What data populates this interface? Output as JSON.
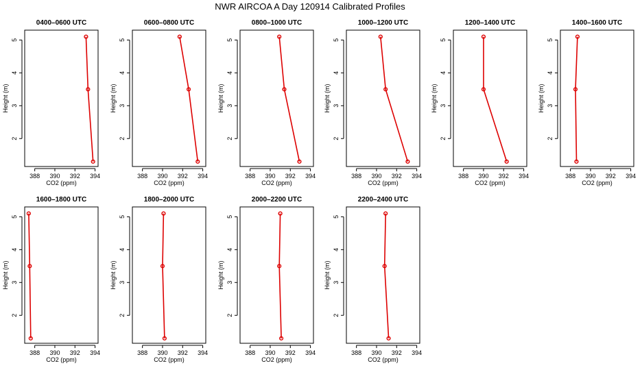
{
  "figure": {
    "title": "NWR AIRCOA A  Day 120914  Calibrated Profiles",
    "line_color": "#dd0000"
  },
  "chart_data": [
    {
      "type": "line",
      "title": "0400–0600 UTC",
      "xlabel": "CO2 (ppm)",
      "ylabel": "Height (m)",
      "xlim": [
        387,
        394.3
      ],
      "ylim": [
        1.15,
        5.3
      ],
      "xticks": [
        388,
        390,
        392,
        394
      ],
      "yticks": [
        2,
        3,
        4,
        5
      ],
      "series": [
        {
          "x": [
            393.8,
            393.3,
            393.1
          ],
          "y": [
            1.3,
            3.5,
            5.1
          ]
        }
      ]
    },
    {
      "type": "line",
      "title": "0600–0800 UTC",
      "xlabel": "CO2 (ppm)",
      "ylabel": "Height (m)",
      "xlim": [
        387,
        394.3
      ],
      "ylim": [
        1.15,
        5.3
      ],
      "xticks": [
        388,
        390,
        392,
        394
      ],
      "yticks": [
        2,
        3,
        4,
        5
      ],
      "series": [
        {
          "x": [
            393.5,
            392.6,
            391.7
          ],
          "y": [
            1.3,
            3.5,
            5.1
          ]
        }
      ]
    },
    {
      "type": "line",
      "title": "0800–1000 UTC",
      "xlabel": "CO2 (ppm)",
      "ylabel": "Height (m)",
      "xlim": [
        387,
        394.3
      ],
      "ylim": [
        1.15,
        5.3
      ],
      "xticks": [
        388,
        390,
        392,
        394
      ],
      "yticks": [
        2,
        3,
        4,
        5
      ],
      "series": [
        {
          "x": [
            392.9,
            391.4,
            390.9
          ],
          "y": [
            1.3,
            3.5,
            5.1
          ]
        }
      ]
    },
    {
      "type": "line",
      "title": "1000–1200 UTC",
      "xlabel": "CO2 (ppm)",
      "ylabel": "Height (m)",
      "xlim": [
        387,
        394.3
      ],
      "ylim": [
        1.15,
        5.3
      ],
      "xticks": [
        388,
        390,
        392,
        394
      ],
      "yticks": [
        2,
        3,
        4,
        5
      ],
      "series": [
        {
          "x": [
            393.1,
            390.9,
            390.4
          ],
          "y": [
            1.3,
            3.5,
            5.1
          ]
        }
      ]
    },
    {
      "type": "line",
      "title": "1200–1400 UTC",
      "xlabel": "CO2 (ppm)",
      "ylabel": "Height (m)",
      "xlim": [
        387,
        394.3
      ],
      "ylim": [
        1.15,
        5.3
      ],
      "xticks": [
        388,
        390,
        392,
        394
      ],
      "yticks": [
        2,
        3,
        4,
        5
      ],
      "series": [
        {
          "x": [
            392.3,
            390.0,
            390.0
          ],
          "y": [
            1.3,
            3.5,
            5.1
          ]
        }
      ]
    },
    {
      "type": "line",
      "title": "1400–1600 UTC",
      "xlabel": "CO2 (ppm)",
      "ylabel": "Height (m)",
      "xlim": [
        387,
        394.3
      ],
      "ylim": [
        1.15,
        5.3
      ],
      "xticks": [
        388,
        390,
        392,
        394
      ],
      "yticks": [
        2,
        3,
        4,
        5
      ],
      "series": [
        {
          "x": [
            388.6,
            388.5,
            388.7
          ],
          "y": [
            1.3,
            3.5,
            5.1
          ]
        }
      ]
    },
    {
      "type": "line",
      "title": "1600–1800 UTC",
      "xlabel": "CO2 (ppm)",
      "ylabel": "Height (m)",
      "xlim": [
        387,
        394.3
      ],
      "ylim": [
        1.15,
        5.3
      ],
      "xticks": [
        388,
        390,
        392,
        394
      ],
      "yticks": [
        2,
        3,
        4,
        5
      ],
      "series": [
        {
          "x": [
            387.6,
            387.5,
            387.4
          ],
          "y": [
            1.3,
            3.5,
            5.1
          ]
        }
      ]
    },
    {
      "type": "line",
      "title": "1800–2000 UTC",
      "xlabel": "CO2 (ppm)",
      "ylabel": "Height (m)",
      "xlim": [
        387,
        394.3
      ],
      "ylim": [
        1.15,
        5.3
      ],
      "xticks": [
        388,
        390,
        392,
        394
      ],
      "yticks": [
        2,
        3,
        4,
        5
      ],
      "series": [
        {
          "x": [
            390.2,
            390.0,
            390.1
          ],
          "y": [
            1.3,
            3.5,
            5.1
          ]
        }
      ]
    },
    {
      "type": "line",
      "title": "2000–2200 UTC",
      "xlabel": "CO2 (ppm)",
      "ylabel": "Height (m)",
      "xlim": [
        387,
        394.3
      ],
      "ylim": [
        1.15,
        5.3
      ],
      "xticks": [
        388,
        390,
        392,
        394
      ],
      "yticks": [
        2,
        3,
        4,
        5
      ],
      "series": [
        {
          "x": [
            391.1,
            390.9,
            391.0
          ],
          "y": [
            1.3,
            3.5,
            5.1
          ]
        }
      ]
    },
    {
      "type": "line",
      "title": "2200–2400 UTC",
      "xlabel": "CO2 (ppm)",
      "ylabel": "Height (m)",
      "xlim": [
        387,
        394.3
      ],
      "ylim": [
        1.15,
        5.3
      ],
      "xticks": [
        388,
        390,
        392,
        394
      ],
      "yticks": [
        2,
        3,
        4,
        5
      ],
      "series": [
        {
          "x": [
            391.2,
            390.8,
            390.9
          ],
          "y": [
            1.3,
            3.5,
            5.1
          ]
        }
      ]
    }
  ]
}
